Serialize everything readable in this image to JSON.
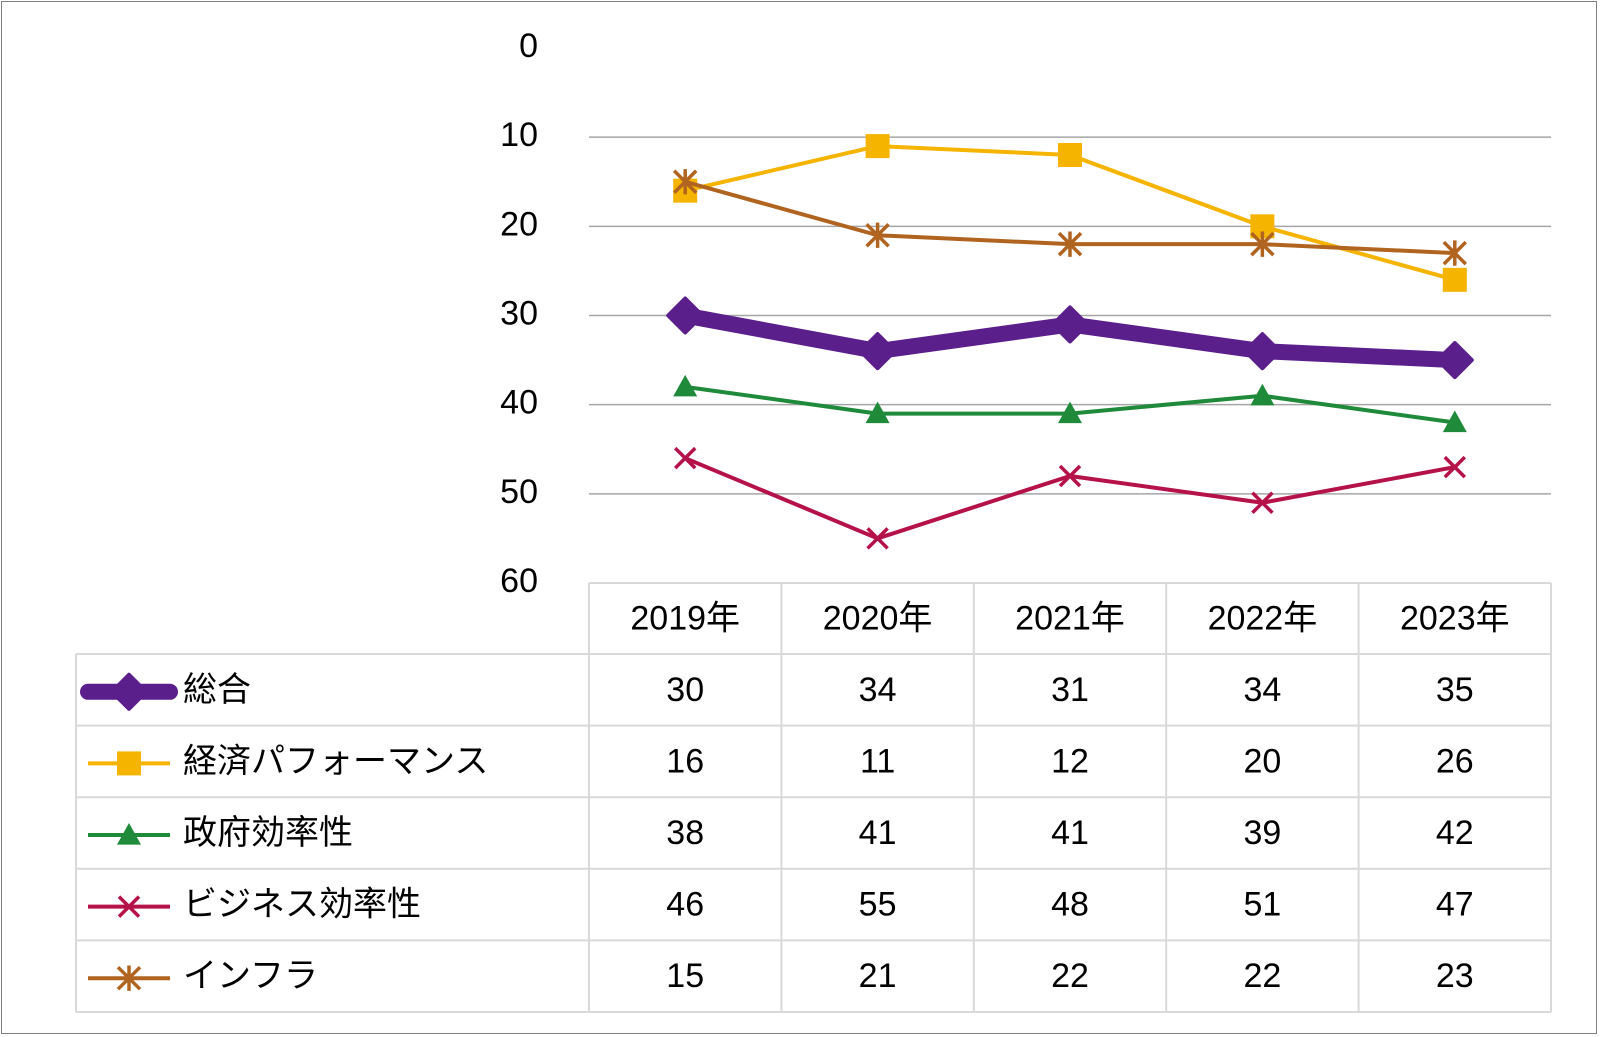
{
  "chart_data": {
    "type": "line",
    "y_axis": {
      "min": 0,
      "max": 60,
      "reversed": true,
      "ticks": [
        0,
        10,
        20,
        30,
        40,
        50,
        60
      ],
      "gridlines": true
    },
    "categories": [
      "2019年",
      "2020年",
      "2021年",
      "2022年",
      "2023年"
    ],
    "series": [
      {
        "name": "総合",
        "values": [
          30,
          34,
          31,
          34,
          35
        ],
        "color": "#5b1f8c",
        "marker": "diamond",
        "emphasis": true
      },
      {
        "name": "経済パフォーマンス",
        "values": [
          16,
          11,
          12,
          20,
          26
        ],
        "color": "#f5b400",
        "marker": "square"
      },
      {
        "name": "政府効率性",
        "values": [
          38,
          41,
          41,
          39,
          42
        ],
        "color": "#1e8a3a",
        "marker": "triangle"
      },
      {
        "name": "ビジネス効率性",
        "values": [
          46,
          55,
          48,
          51,
          47
        ],
        "color": "#b5124a",
        "marker": "x"
      },
      {
        "name": "インフラ",
        "values": [
          15,
          21,
          22,
          22,
          23
        ],
        "color": "#b0641f",
        "marker": "star"
      }
    ],
    "data_table": true
  },
  "colors": {
    "grid": "#a6a6a6",
    "table_border": "#d9d9d9",
    "frame": "#7f7f7f"
  }
}
